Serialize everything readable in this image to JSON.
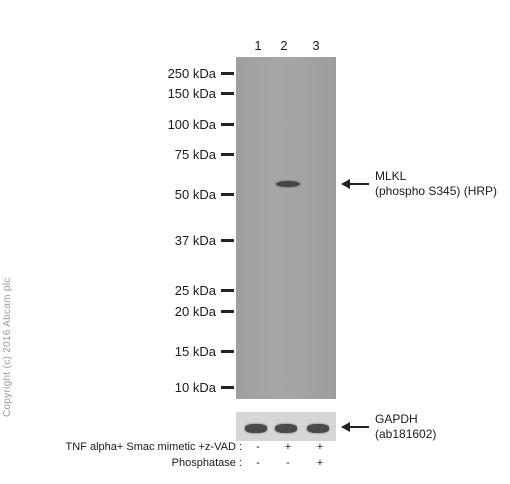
{
  "lanes": [
    "1",
    "2",
    "3"
  ],
  "markers": [
    "250 kDa",
    "150 kDa",
    "100 kDa",
    "75 kDa",
    "50 kDa",
    "37 kDa",
    "25 kDa",
    "20 kDa",
    "15 kDa",
    "10 kDa"
  ],
  "target_label": {
    "line1": "MLKL",
    "line2": "(phospho S345) (HRP)"
  },
  "loading_control_label": {
    "line1": "GAPDH",
    "line2": "(ab181602)"
  },
  "treatments": [
    {
      "name": "TNF alpha+ Smac mimetic +z-VAD :",
      "values": [
        "-",
        "+",
        "+"
      ]
    },
    {
      "name": "Phosphatase :",
      "values": [
        "-",
        "-",
        "+"
      ]
    }
  ],
  "copyright": "Copyright (c) 2016 Abcam plc"
}
